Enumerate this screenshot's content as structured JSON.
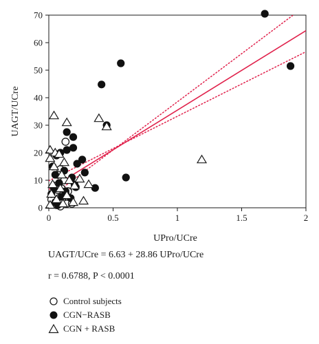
{
  "chart_data": {
    "type": "scatter",
    "xlabel": "UPro/UCre",
    "ylabel": "UAGT/UCre",
    "xlim": [
      0,
      2
    ],
    "ylim": [
      0,
      70
    ],
    "xticks": [
      0,
      0.5,
      1,
      1.5,
      2
    ],
    "xtick_labels": [
      "0",
      "0.5",
      "1",
      "1.5",
      "2"
    ],
    "yticks": [
      0,
      10,
      20,
      30,
      40,
      50,
      60,
      70
    ],
    "ytick_labels": [
      "0",
      "10",
      "20",
      "30",
      "40",
      "50",
      "60",
      "70"
    ],
    "grid": false,
    "legend_position": "bottom-left",
    "regression": {
      "intercept": 6.63,
      "slope": 28.86,
      "equation_text": "UAGT/UCre = 6.63 + 28.86 UPro/UCre",
      "stats_text": "r = 0.6788, P < 0.0001",
      "line_color": "#e0214b",
      "confidence_band": [
        {
          "x": [
            0,
            1.9
          ],
          "y": [
            3.5,
            70
          ]
        },
        {
          "x": [
            0,
            2.0
          ],
          "y": [
            9.8,
            56.7
          ]
        }
      ]
    },
    "series": [
      {
        "name": "Control subjects",
        "marker": "circle-open",
        "color": "#1a1a1a",
        "points": [
          [
            0.13,
            24.0
          ],
          [
            0.09,
            14.0
          ],
          [
            0.07,
            12.0
          ],
          [
            0.12,
            10.0
          ],
          [
            0.04,
            8.0
          ],
          [
            0.1,
            7.0
          ],
          [
            0.15,
            6.0
          ],
          [
            0.05,
            5.0
          ],
          [
            0.12,
            4.0
          ],
          [
            0.08,
            3.5
          ],
          [
            0.16,
            3.0
          ],
          [
            0.03,
            2.5
          ],
          [
            0.11,
            2.0
          ],
          [
            0.14,
            1.5
          ],
          [
            0.06,
            1.0
          ],
          [
            0.18,
            1.5
          ],
          [
            0.02,
            3.0
          ],
          [
            0.09,
            0.5
          ],
          [
            0.13,
            5.0
          ],
          [
            0.07,
            6.5
          ]
        ]
      },
      {
        "name": "CGN−RASB",
        "marker": "circle-filled",
        "color": "#111111",
        "points": [
          [
            1.68,
            70.5
          ],
          [
            1.88,
            51.5
          ],
          [
            0.56,
            52.5
          ],
          [
            0.41,
            44.8
          ],
          [
            0.45,
            30.0
          ],
          [
            0.6,
            11.0
          ],
          [
            0.14,
            27.5
          ],
          [
            0.19,
            25.7
          ],
          [
            0.26,
            17.5
          ],
          [
            0.14,
            21.0
          ],
          [
            0.19,
            21.8
          ],
          [
            0.09,
            20.0
          ],
          [
            0.06,
            19.0
          ],
          [
            0.22,
            16.0
          ],
          [
            0.28,
            12.8
          ],
          [
            0.36,
            7.2
          ],
          [
            0.03,
            15.0
          ],
          [
            0.05,
            12.0
          ],
          [
            0.12,
            13.5
          ],
          [
            0.18,
            11.0
          ],
          [
            0.08,
            9.0
          ],
          [
            0.2,
            8.5
          ],
          [
            0.04,
            7.0
          ],
          [
            0.13,
            6.0
          ],
          [
            0.02,
            5.0
          ],
          [
            0.1,
            4.0
          ],
          [
            0.17,
            3.5
          ],
          [
            0.05,
            2.0
          ],
          [
            0.07,
            1.0
          ],
          [
            0.21,
            7.5
          ]
        ]
      },
      {
        "name": "CGN + RASB",
        "marker": "triangle-open",
        "color": "#1a1a1a",
        "points": [
          [
            0.04,
            33.5
          ],
          [
            0.39,
            32.5
          ],
          [
            0.14,
            31.0
          ],
          [
            0.45,
            29.5
          ],
          [
            1.19,
            17.5
          ],
          [
            0.01,
            21.0
          ],
          [
            0.01,
            18.0
          ],
          [
            0.05,
            20.0
          ],
          [
            0.08,
            19.5
          ],
          [
            0.12,
            16.5
          ],
          [
            0.04,
            15.0
          ],
          [
            0.1,
            12.0
          ],
          [
            0.24,
            10.5
          ],
          [
            0.16,
            10.0
          ],
          [
            0.03,
            8.5
          ],
          [
            0.31,
            8.5
          ],
          [
            0.2,
            8.0
          ],
          [
            0.09,
            7.0
          ],
          [
            0.02,
            5.0
          ],
          [
            0.14,
            4.5
          ],
          [
            0.06,
            3.0
          ],
          [
            0.27,
            2.5
          ],
          [
            0.11,
            1.5
          ],
          [
            0.01,
            1.0
          ],
          [
            0.19,
            2.0
          ]
        ]
      }
    ]
  }
}
